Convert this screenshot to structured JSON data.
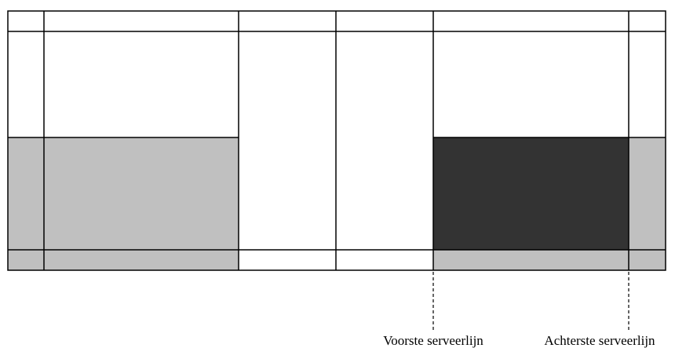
{
  "diagram": {
    "type": "badminton-court-service-zones",
    "colors": {
      "background": "#ffffff",
      "line": "#000000",
      "light_zone": "#c0c0c0",
      "dark_zone": "#333333"
    },
    "labels": {
      "front_service_line": "Voorste serveerlijn",
      "back_service_line": "Achterste serveerlijn"
    }
  }
}
